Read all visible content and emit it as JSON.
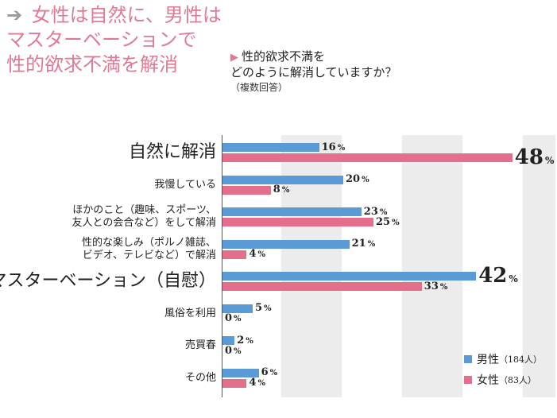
{
  "title": {
    "arrow": "➔",
    "lines": [
      "女性は自然に、男性は",
      "マスターベーションで",
      "性的欲求不満を解消"
    ]
  },
  "question": {
    "marker": "▶",
    "line1": "性的欲求不満を",
    "line2": "どのように解消していますか？",
    "note": "（複数回答）"
  },
  "chart_data": {
    "type": "bar",
    "orientation": "horizontal",
    "xlim": [
      0,
      50
    ],
    "categories": [
      [
        "自然に解消"
      ],
      [
        "我慢している"
      ],
      [
        "ほかのこと（趣味、スポーツ、",
        "友人との会合など）をして解消"
      ],
      [
        "性的な楽しみ（ポルノ雑誌、",
        "ビデオ、テレビなど）で解消"
      ],
      [
        "マスターベーション（自慰）"
      ],
      [
        "風俗を利用"
      ],
      [
        "売買春"
      ],
      [
        "その他"
      ]
    ],
    "series": [
      {
        "name": "男性",
        "count": "（184人）",
        "color": "#5b9bd5",
        "values": [
          16,
          20,
          23,
          21,
          42,
          5,
          2,
          6
        ]
      },
      {
        "name": "女性",
        "count": "（83人）",
        "color": "#e36f8c",
        "values": [
          48,
          8,
          25,
          4,
          33,
          0,
          0,
          4
        ]
      }
    ],
    "unit": "%",
    "emphasis": {
      "large_categories": [
        0,
        4
      ],
      "large_values": [
        [
          1,
          0
        ],
        [
          0,
          4
        ]
      ]
    }
  }
}
